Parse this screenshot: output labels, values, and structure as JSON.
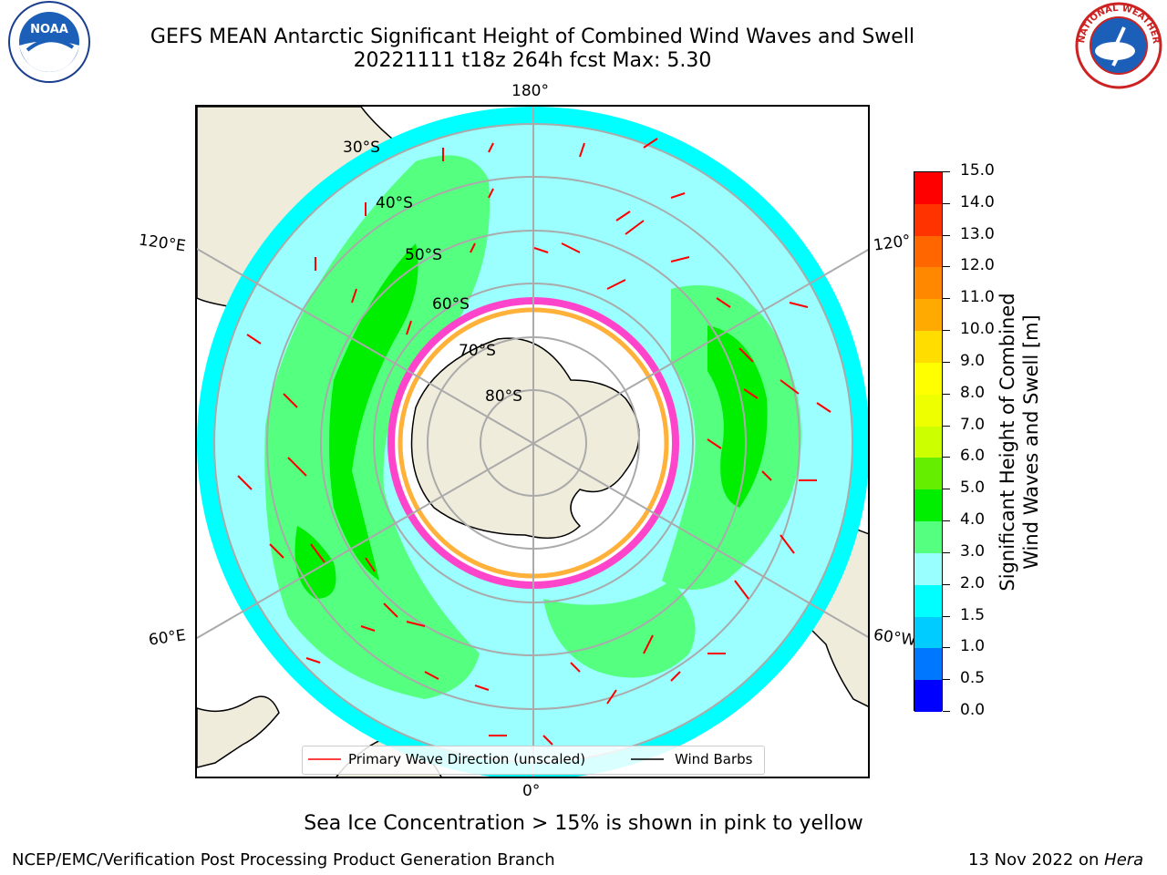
{
  "header": {
    "title_line1": "GEFS MEAN Antarctic Significant Height of Combined Wind Waves and Swell",
    "title_line2": "20221111 t18z 264h fcst   Max: 5.30"
  },
  "logos": {
    "left": "NOAA",
    "right": "NATIONAL WEATHER SERVICE"
  },
  "map": {
    "meridian_labels": {
      "top": "180°",
      "bottom": "0°",
      "left_upper": "120°E",
      "left_lower": "60°E",
      "right_upper": "120°",
      "right_lower": "60°W"
    },
    "latitude_labels": [
      "30°S",
      "40°S",
      "50°S",
      "60°S",
      "70°S",
      "80°S"
    ],
    "legend": {
      "wave_direction": "Primary Wave Direction (unscaled)",
      "wind_barbs": "Wind Barbs"
    },
    "colors": {
      "land": "#efecdc",
      "ocean_1_5_2": "#00ffff",
      "ocean_2_3": "#9bffff",
      "wave_3_4": "#55ff80",
      "wave_4_5": "#00ee00",
      "ice": "#ff44cc",
      "arrow": "#ff0000"
    }
  },
  "colorbar": {
    "title_line1": "Significant Height of Combined",
    "title_line2": "Wind Waves and Swell [m]",
    "ticks": [
      "0.0",
      "0.5",
      "1.0",
      "1.5",
      "2.0",
      "3.0",
      "4.0",
      "5.0",
      "6.0",
      "7.0",
      "8.0",
      "9.0",
      "10.0",
      "11.0",
      "12.0",
      "13.0",
      "14.0",
      "15.0"
    ],
    "colors": [
      "#0000ff",
      "#0077ff",
      "#00ccff",
      "#00ffff",
      "#99ffff",
      "#55ff80",
      "#00ee00",
      "#66ee00",
      "#ccff00",
      "#eeff00",
      "#ffff00",
      "#ffdd00",
      "#ffaa00",
      "#ff8800",
      "#ff6600",
      "#ff3300",
      "#ff0000"
    ]
  },
  "caption": "Sea Ice Concentration > 15% is shown in pink to yellow",
  "footer": {
    "left": "NCEP/EMC/Verification Post Processing Product Generation Branch",
    "right_date": "13 Nov 2022 on ",
    "right_host": "Hera"
  }
}
